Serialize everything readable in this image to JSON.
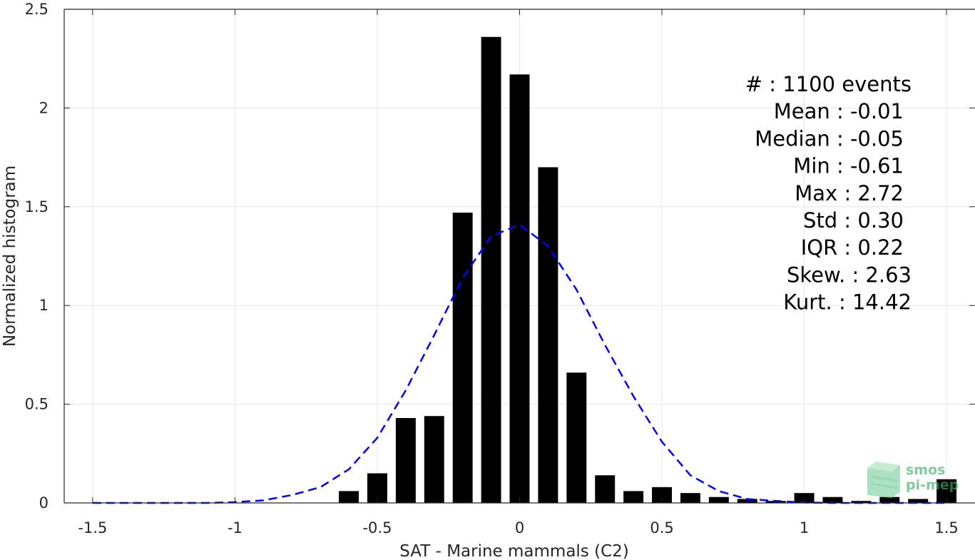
{
  "colors": {
    "bar": "#000000",
    "fit": "#0000ff",
    "grid": "#e6e6e6",
    "axis": "#262626",
    "logo": "#3dae6b"
  },
  "chart_data": {
    "type": "bar",
    "xlabel": "SAT - Marine mammals (C2)",
    "ylabel": "Normalized histogram",
    "xlim": [
      -1.6,
      1.6
    ],
    "ylim": [
      0,
      2.5
    ],
    "grid": true,
    "xticks": [
      -1.5,
      -1,
      -0.5,
      0,
      0.5,
      1,
      1.5
    ],
    "xtick_labels": [
      "-1.5",
      "-1",
      "-0.5",
      "0",
      "0.5",
      "1",
      "1.5"
    ],
    "yticks": [
      0,
      0.5,
      1,
      1.5,
      2,
      2.5
    ],
    "ytick_labels": [
      "0",
      "0.5",
      "1",
      "1.5",
      "2",
      "2.5"
    ],
    "bar_width": 0.07,
    "series": [
      {
        "type": "bar",
        "x": [
          -0.6,
          -0.5,
          -0.4,
          -0.3,
          -0.2,
          -0.1,
          0.0,
          0.1,
          0.2,
          0.3,
          0.4,
          0.5,
          0.6,
          0.7,
          0.8,
          0.9,
          1.0,
          1.1,
          1.2,
          1.3,
          1.4,
          1.5
        ],
        "values": [
          0.06,
          0.15,
          0.43,
          0.44,
          1.47,
          2.36,
          2.17,
          1.7,
          0.66,
          0.14,
          0.06,
          0.08,
          0.05,
          0.03,
          0.02,
          0.01,
          0.05,
          0.03,
          0.01,
          0.03,
          0.02,
          0.12
        ]
      },
      {
        "type": "line",
        "style": "dashed",
        "x": [
          -1.5,
          -1.4,
          -1.3,
          -1.2,
          -1.1,
          -1.0,
          -0.9,
          -0.8,
          -0.7,
          -0.6,
          -0.5,
          -0.4,
          -0.3,
          -0.2,
          -0.1,
          0.0,
          0.1,
          0.2,
          0.3,
          0.4,
          0.5,
          0.6,
          0.7,
          0.8,
          0.9,
          1.0,
          1.1,
          1.2,
          1.3,
          1.4,
          1.5
        ],
        "values": [
          0.0,
          0.0,
          0.0,
          0.0,
          0.0,
          0.004,
          0.013,
          0.04,
          0.08,
          0.17,
          0.33,
          0.57,
          0.85,
          1.14,
          1.35,
          1.41,
          1.3,
          1.08,
          0.8,
          0.54,
          0.31,
          0.14,
          0.06,
          0.02,
          0.01,
          0.002,
          0.0,
          0.0,
          0.0,
          0.0,
          0.0
        ]
      }
    ],
    "annotations": [
      {
        "label": "#  : 1100 events"
      },
      {
        "label": "Mean : -0.01"
      },
      {
        "label": "Median : -0.05"
      },
      {
        "label": "Min : -0.61"
      },
      {
        "label": "Max : 2.72"
      },
      {
        "label": "Std : 0.30"
      },
      {
        "label": "IQR : 0.22"
      },
      {
        "label": "Skew. : 2.63"
      },
      {
        "label": "Kurt. : 14.42"
      }
    ]
  },
  "logo": {
    "line1": "smos",
    "line2": "pi-mep"
  }
}
